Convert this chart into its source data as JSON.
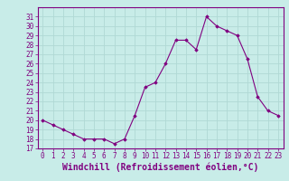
{
  "x": [
    0,
    1,
    2,
    3,
    4,
    5,
    6,
    7,
    8,
    9,
    10,
    11,
    12,
    13,
    14,
    15,
    16,
    17,
    18,
    19,
    20,
    21,
    22,
    23
  ],
  "y": [
    20,
    19.5,
    19,
    18.5,
    18,
    18,
    18,
    17.5,
    18,
    20.5,
    23.5,
    24,
    26,
    28.5,
    28.5,
    27.5,
    31,
    30,
    29.5,
    29,
    26.5,
    22.5,
    21,
    20.5
  ],
  "xlabel": "Windchill (Refroidissement éolien,°C)",
  "ylim": [
    17,
    32
  ],
  "xlim": [
    -0.5,
    23.5
  ],
  "yticks": [
    17,
    18,
    19,
    20,
    21,
    22,
    23,
    24,
    25,
    26,
    27,
    28,
    29,
    30,
    31
  ],
  "xticks": [
    0,
    1,
    2,
    3,
    4,
    5,
    6,
    7,
    8,
    9,
    10,
    11,
    12,
    13,
    14,
    15,
    16,
    17,
    18,
    19,
    20,
    21,
    22,
    23
  ],
  "line_color": "#800080",
  "marker": "D",
  "marker_size": 1.8,
  "bg_color": "#c8ece8",
  "grid_color": "#b0d8d4",
  "tick_label_fontsize": 5.5,
  "xlabel_fontsize": 7,
  "spine_color": "#800080"
}
